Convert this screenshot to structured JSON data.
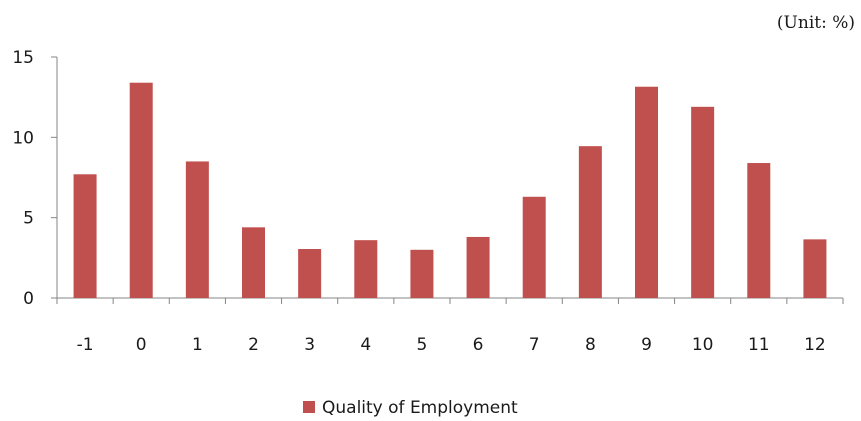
{
  "unit_note": "(Unit: %)",
  "chart_data": {
    "type": "bar",
    "categories": [
      "-1",
      "0",
      "1",
      "2",
      "3",
      "4",
      "5",
      "6",
      "7",
      "8",
      "9",
      "10",
      "11",
      "12"
    ],
    "series": [
      {
        "name": "Quality of Employment",
        "color": "#c0504d",
        "values": [
          7.7,
          13.4,
          8.5,
          4.4,
          3.05,
          3.6,
          3.0,
          3.8,
          6.3,
          9.45,
          13.15,
          11.9,
          8.4,
          3.65
        ]
      }
    ],
    "y_ticks": [
      "0",
      "5",
      "10",
      "15"
    ],
    "ylim": [
      0,
      15
    ],
    "grid": false,
    "legend_position": "bottom"
  }
}
